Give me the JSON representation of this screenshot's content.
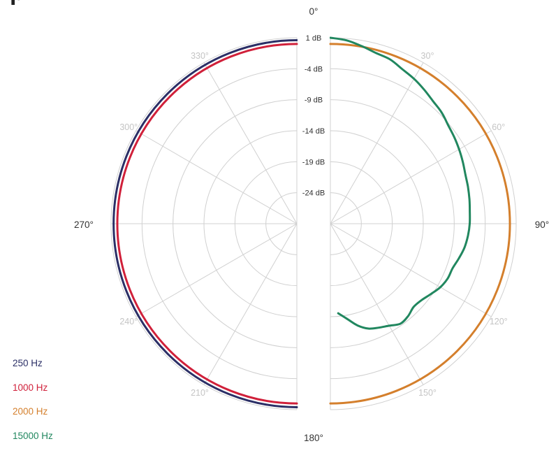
{
  "header": {
    "title_fragment": "p"
  },
  "chart_data": {
    "type": "polar",
    "title": "",
    "axis": {
      "angle_labels": [
        "0°",
        "30°",
        "60°",
        "90°",
        "120°",
        "150°",
        "180°",
        "210°",
        "240°",
        "270°",
        "300°",
        "330°"
      ],
      "db_ticks": [
        "1 dB",
        "-4 dB",
        "-9 dB",
        "-14 dB",
        "-19 dB",
        "-24 dB"
      ],
      "db_range": [
        -29,
        1
      ],
      "grid": true
    },
    "legend_placement": "bottom-left",
    "series": [
      {
        "name": "250 Hz",
        "color": "#2b2f66",
        "side": "left",
        "angles": [
          0,
          180
        ],
        "db": [
          0.6,
          0.6
        ]
      },
      {
        "name": "1000 Hz",
        "color": "#d0203a",
        "side": "left",
        "angles": [
          0,
          180
        ],
        "db": [
          0.0,
          0.0
        ]
      },
      {
        "name": "2000 Hz",
        "color": "#d47f2c",
        "side": "right",
        "angles": [
          0,
          180
        ],
        "db": [
          0.0,
          0.0
        ]
      },
      {
        "name": "15000 Hz",
        "color": "#21875f",
        "side": "right",
        "angles": [
          0,
          5,
          10,
          15,
          20,
          25,
          30,
          35,
          40,
          45,
          50,
          55,
          60,
          65,
          70,
          75,
          80,
          85,
          90,
          95,
          100,
          105,
          110,
          115,
          120,
          125,
          130,
          135,
          140,
          145,
          150,
          155,
          160,
          165,
          170,
          175
        ],
        "db": [
          1.0,
          0.7,
          0.1,
          -0.5,
          -0.8,
          -1.5,
          -2.0,
          -2.6,
          -3.2,
          -3.6,
          -4.2,
          -4.6,
          -5.0,
          -5.4,
          -5.8,
          -6.0,
          -6.2,
          -6.4,
          -6.5,
          -6.7,
          -7.0,
          -7.5,
          -8.0,
          -8.1,
          -8.5,
          -9.2,
          -9.8,
          -10.0,
          -9.5,
          -9.3,
          -10.0,
          -10.5,
          -11.0,
          -12.0,
          -13.4,
          -14.5
        ]
      }
    ]
  }
}
